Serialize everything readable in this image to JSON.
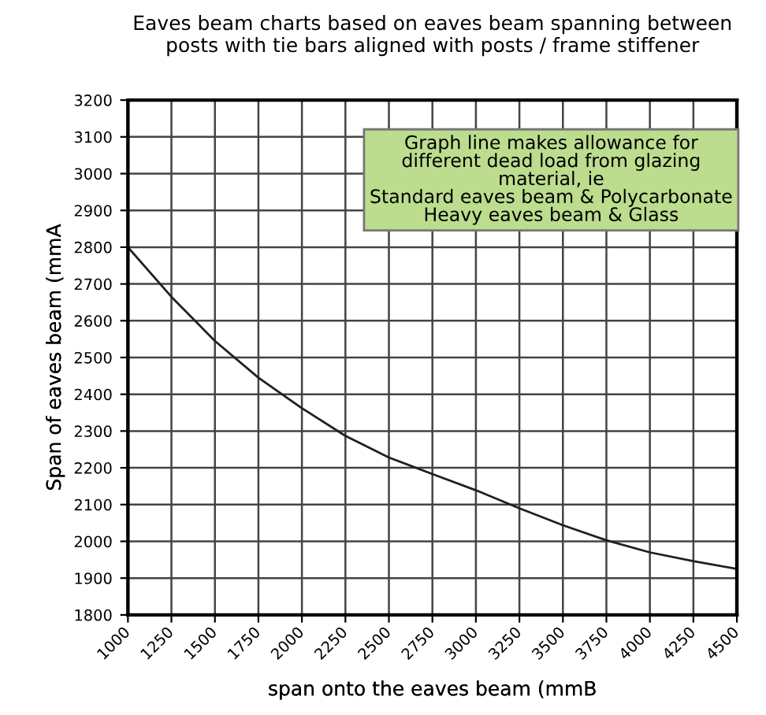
{
  "chart_data": {
    "type": "line",
    "title": "Eaves beam charts based on eaves beam spanning between\nposts with tie bars aligned with posts / frame stiffener",
    "xlabel": "span onto the eaves beam (mmB",
    "ylabel": "Span of eaves beam (mmA",
    "x": [
      1000,
      1250,
      1500,
      1750,
      2000,
      2250,
      2500,
      2750,
      3000,
      3250,
      3500,
      3750,
      4000,
      4250,
      4500
    ],
    "series": [
      {
        "color": "#231f20",
        "values": [
          2800,
          2665,
          2545,
          2445,
          2362,
          2287,
          2228,
          2183,
          2139,
          2090,
          2044,
          2003,
          1970,
          1946,
          1925
        ]
      }
    ],
    "xlim": [
      1000,
      4500
    ],
    "xticks": [
      1000,
      1250,
      1500,
      1750,
      2000,
      2250,
      2500,
      2750,
      3000,
      3250,
      3500,
      3750,
      4000,
      4250,
      4500
    ],
    "ylim": [
      1800,
      3200
    ],
    "yticks": [
      1800,
      1900,
      2000,
      2100,
      2200,
      2300,
      2400,
      2500,
      2600,
      2700,
      2800,
      2900,
      3000,
      3100,
      3200
    ],
    "grid": true,
    "marker": "none",
    "line_style": "solid",
    "annotations": [
      "Graph line makes allowance for\ndifferent dead load from glazing\nmaterial, ie\nStandard eaves beam & Polycarbonate\nHeavy eaves beam & Glass"
    ]
  }
}
